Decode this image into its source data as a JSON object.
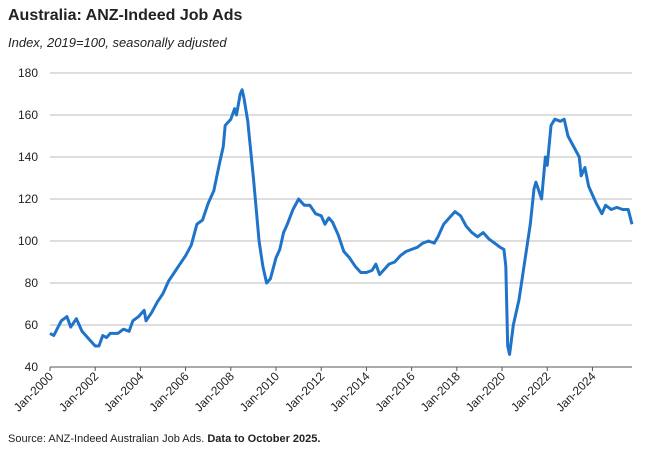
{
  "chart_data": {
    "type": "line",
    "title": "Australia: ANZ-Indeed Job Ads",
    "subtitle": "Index, 2019=100, seasonally adjusted",
    "source": "Source: ANZ-Indeed Australian Job Ads.",
    "source_note": "Data to October 2025.",
    "color": "#1f74c9",
    "grid": true,
    "x": [
      "Jan-2000",
      "Mar-2000",
      "Jul-2000",
      "Oct-2000",
      "Dec-2000",
      "Mar-2001",
      "Jun-2001",
      "Oct-2001",
      "Jan-2002",
      "Mar-2002",
      "May-2002",
      "Jul-2002",
      "Sep-2002",
      "Jan-2003",
      "Apr-2003",
      "Jul-2003",
      "Sep-2003",
      "Dec-2003",
      "Mar-2004",
      "Apr-2004",
      "Jul-2004",
      "Oct-2004",
      "Jan-2005",
      "Apr-2005",
      "Jul-2005",
      "Oct-2005",
      "Jan-2006",
      "Apr-2006",
      "Jul-2006",
      "Oct-2006",
      "Jan-2007",
      "Apr-2007",
      "Jul-2007",
      "Sep-2007",
      "Oct-2007",
      "Jan-2008",
      "Mar-2008",
      "Apr-2008",
      "Jun-2008",
      "Jul-2008",
      "Aug-2008",
      "Oct-2008",
      "Jan-2009",
      "Apr-2009",
      "Jun-2009",
      "Aug-2009",
      "Oct-2009",
      "Jan-2010",
      "Mar-2010",
      "May-2010",
      "Jul-2010",
      "Oct-2010",
      "Jan-2011",
      "Apr-2011",
      "Jul-2011",
      "Oct-2011",
      "Jan-2012",
      "Mar-2012",
      "May-2012",
      "Jul-2012",
      "Oct-2012",
      "Jan-2013",
      "Apr-2013",
      "Jul-2013",
      "Oct-2013",
      "Jan-2014",
      "Apr-2014",
      "Jun-2014",
      "Aug-2014",
      "Oct-2014",
      "Jan-2015",
      "Apr-2015",
      "Jul-2015",
      "Oct-2015",
      "Jan-2016",
      "Apr-2016",
      "Jul-2016",
      "Oct-2016",
      "Jan-2017",
      "Mar-2017",
      "Jun-2017",
      "Sep-2017",
      "Dec-2017",
      "Mar-2018",
      "Jun-2018",
      "Sep-2018",
      "Dec-2018",
      "Mar-2019",
      "Jun-2019",
      "Sep-2019",
      "Dec-2019",
      "Feb-2020",
      "Mar-2020",
      "Apr-2020",
      "May-2020",
      "Jul-2020",
      "Oct-2020",
      "Jan-2021",
      "Apr-2021",
      "Jun-2021",
      "Jul-2021",
      "Oct-2021",
      "Dec-2021",
      "Jan-2022",
      "Mar-2022",
      "May-2022",
      "Aug-2022",
      "Oct-2022",
      "Dec-2022",
      "Mar-2023",
      "Jun-2023",
      "Jul-2023",
      "Sep-2023",
      "Nov-2023",
      "Mar-2024",
      "Jun-2024",
      "Aug-2024",
      "Nov-2024",
      "Feb-2025",
      "May-2025",
      "Aug-2025",
      "Oct-2025"
    ],
    "values": [
      56,
      55,
      62,
      64,
      59,
      63,
      57,
      53,
      50,
      50,
      55,
      54,
      56,
      56,
      58,
      57,
      62,
      64,
      67,
      62,
      66,
      71,
      75,
      81,
      85,
      89,
      93,
      98,
      108,
      110,
      118,
      124,
      137,
      145,
      155,
      158,
      163,
      160,
      170,
      172,
      168,
      157,
      130,
      100,
      88,
      80,
      82,
      92,
      96,
      104,
      108,
      115,
      120,
      117,
      117,
      113,
      112,
      108,
      111,
      109,
      103,
      95,
      92,
      88,
      85,
      85,
      86,
      89,
      84,
      86,
      89,
      90,
      93,
      95,
      96,
      97,
      99,
      100,
      99,
      102,
      108,
      111,
      114,
      112,
      107,
      104,
      102,
      104,
      101,
      99,
      97,
      96,
      88,
      50,
      46,
      60,
      72,
      90,
      108,
      125,
      128,
      120,
      140,
      136,
      155,
      158,
      157,
      158,
      150,
      145,
      140,
      131,
      135,
      126,
      118,
      113,
      117,
      115,
      116,
      115,
      115,
      108
    ],
    "xlim": [
      "Jan-2000",
      "Oct-2025"
    ],
    "xticks": [
      "Jan-2000",
      "Jan-2002",
      "Jan-2004",
      "Jan-2006",
      "Jan-2008",
      "Jan-2010",
      "Jan-2012",
      "Jan-2014",
      "Jan-2016",
      "Jan-2018",
      "Jan-2020",
      "Jan-2022",
      "Jan-2024"
    ],
    "ylim": [
      40,
      180
    ],
    "yticks": [
      40,
      60,
      80,
      100,
      120,
      140,
      160,
      180
    ]
  }
}
